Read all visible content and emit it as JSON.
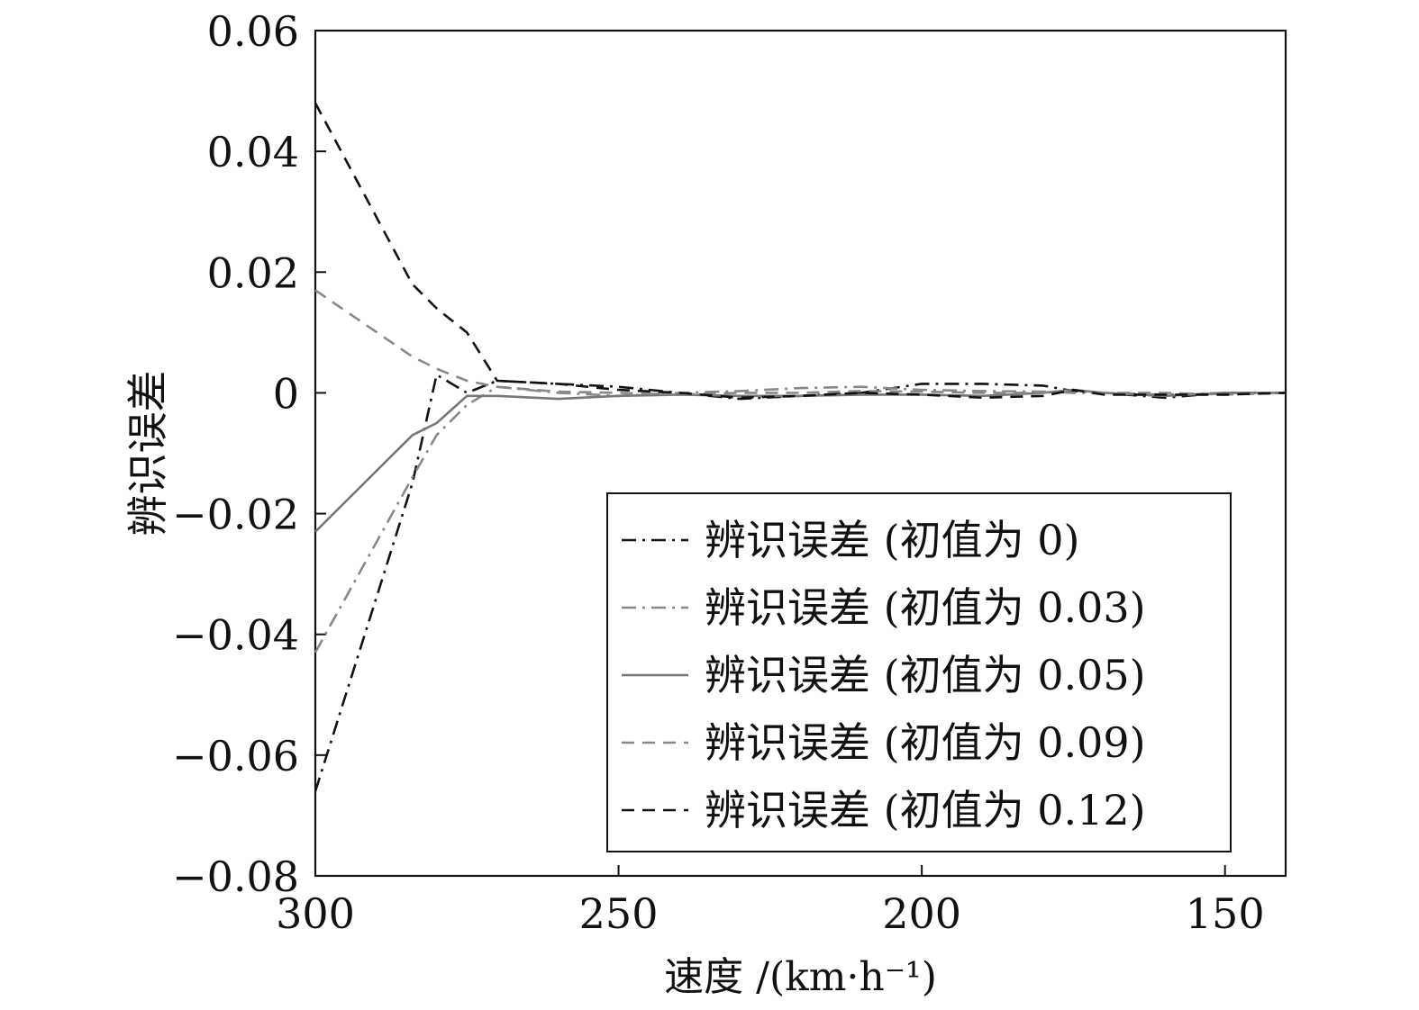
{
  "chart_data": {
    "type": "line",
    "title": "",
    "xlabel": "速度 /(km·h⁻¹)",
    "ylabel": "辨识误差",
    "xlim": [
      300,
      140
    ],
    "ylim": [
      -0.08,
      0.06
    ],
    "x_ticks": [
      300,
      250,
      200,
      150
    ],
    "y_ticks": [
      -0.08,
      -0.06,
      -0.04,
      -0.02,
      0,
      0.02,
      0.04,
      0.06
    ],
    "x_tick_labels": [
      "300",
      "250",
      "200",
      "150"
    ],
    "y_tick_labels": [
      "−0.08",
      "−0.06",
      "−0.04",
      "−0.02",
      "0",
      "0.02",
      "0.04",
      "0.06"
    ],
    "grid": false,
    "legend_position": "bottom-right",
    "x": [
      300,
      284,
      280,
      275,
      270,
      260,
      250,
      240,
      230,
      220,
      210,
      200,
      190,
      180,
      175,
      170,
      160,
      150,
      140
    ],
    "series": [
      {
        "name": "辨识误差 (初值为 0)",
        "color": "#111111",
        "dash": "dashdot",
        "values": [
          -0.066,
          -0.015,
          0.003,
          0.0,
          0.002,
          0.0015,
          0.001,
          0.0,
          -0.001,
          -0.0005,
          0.0,
          0.0015,
          0.0015,
          0.0012,
          0.0003,
          0.0,
          -0.0008,
          0.0,
          0.0
        ]
      },
      {
        "name": "辨识误差 (初值为 0.03)",
        "color": "#888888",
        "dash": "dashdot",
        "values": [
          -0.043,
          -0.014,
          -0.007,
          -0.002,
          0.001,
          0.0,
          -0.0005,
          0.0,
          0.0003,
          0.0008,
          0.001,
          0.0005,
          0.0003,
          0.0002,
          0.0,
          0.0,
          -0.0003,
          0.0,
          0.0
        ]
      },
      {
        "name": "辨识误差 (初值为 0.05)",
        "color": "#777777",
        "dash": "solid",
        "values": [
          -0.023,
          -0.007,
          -0.005,
          -0.0005,
          -0.0005,
          -0.001,
          -0.0005,
          -0.0003,
          -0.0005,
          -0.0005,
          -0.0003,
          -0.0003,
          -0.0005,
          0.0,
          0.0005,
          0.0,
          -0.0005,
          0.0,
          0.0
        ]
      },
      {
        "name": "辨识误差 (初值为 0.09)",
        "color": "#888888",
        "dash": "dashed",
        "values": [
          0.017,
          0.006,
          0.004,
          0.002,
          0.001,
          0.0002,
          0.0,
          -0.0003,
          0.0,
          0.0,
          0.0003,
          0.0002,
          0.0,
          0.0,
          0.0005,
          0.0,
          0.0,
          -0.0003,
          0.0
        ]
      },
      {
        "name": "辨识误差 (初值为 0.12)",
        "color": "#111111",
        "dash": "dashed",
        "values": [
          0.048,
          0.018,
          0.014,
          0.01,
          0.002,
          0.0015,
          0.0005,
          0.0,
          -0.0008,
          -0.0005,
          0.0,
          -0.0003,
          -0.0008,
          -0.0005,
          0.0005,
          -0.0003,
          -0.0003,
          -0.0003,
          0.0
        ]
      }
    ]
  }
}
